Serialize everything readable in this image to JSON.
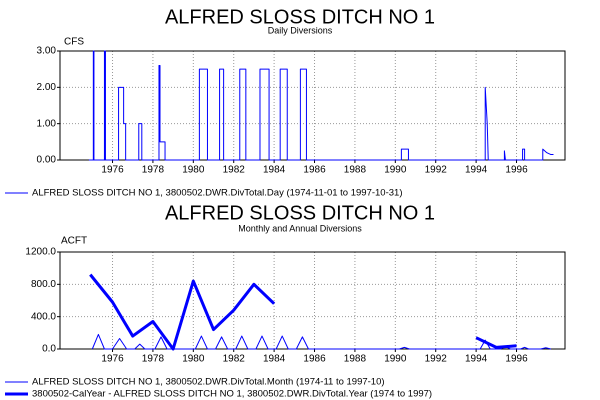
{
  "chart_data": [
    {
      "type": "line",
      "title": "ALFRED SLOSS DITCH NO 1",
      "subtitle": "Daily Diversions",
      "y_label": "CFS",
      "xlim": [
        1973.4,
        1998.4
      ],
      "xticks": [
        1976,
        1978,
        1980,
        1982,
        1984,
        1986,
        1988,
        1990,
        1992,
        1994,
        1996
      ],
      "ylim": [
        0,
        3
      ],
      "yticks": [
        {
          "value": 0,
          "label": "0.00"
        },
        {
          "value": 1,
          "label": "1.00"
        },
        {
          "value": 2,
          "label": "2.00"
        },
        {
          "value": 3,
          "label": "3.00"
        }
      ],
      "grid": true,
      "series": [
        {
          "name": "ALFRED SLOSS DITCH NO 1, 3800502.DWR.DivTotal.Day (1974-11-01 to 1997-10-31)",
          "color": "#0000ff",
          "line_width": 1,
          "x": [
            1974.83,
            1975.05,
            1975.05,
            1975.08,
            1975.08,
            1975.6,
            1975.6,
            1975.65,
            1975.65,
            1976.3,
            1976.3,
            1976.55,
            1976.55,
            1976.65,
            1976.65,
            1977.3,
            1977.3,
            1977.45,
            1977.45,
            1978.3,
            1978.3,
            1978.35,
            1978.35,
            1978.6,
            1978.6,
            1980.3,
            1980.3,
            1980.7,
            1980.7,
            1981.3,
            1981.3,
            1981.5,
            1981.5,
            1982.3,
            1982.3,
            1982.6,
            1982.6,
            1983.3,
            1983.3,
            1983.75,
            1983.75,
            1984.3,
            1984.3,
            1984.65,
            1984.65,
            1985.3,
            1985.3,
            1985.6,
            1985.6,
            1990.3,
            1990.3,
            1990.65,
            1990.65,
            1994.45,
            1994.45,
            1994.55,
            1994.6,
            1995.4,
            1995.4,
            1995.45,
            1996.3,
            1996.3,
            1996.4,
            1996.4,
            1997.3,
            1997.3,
            1997.5,
            1997.7,
            1997.83
          ],
          "values": [
            0,
            0,
            3,
            3,
            0,
            0,
            3,
            3,
            0,
            0,
            2,
            2,
            1,
            1,
            0,
            0,
            1,
            1,
            0,
            0,
            2.6,
            2.6,
            0.5,
            0.5,
            0,
            0,
            2.5,
            2.5,
            0,
            0,
            2.5,
            2.5,
            0,
            0,
            2.5,
            2.5,
            0,
            0,
            2.5,
            2.5,
            0,
            0,
            2.5,
            2.5,
            0,
            0,
            2.5,
            2.5,
            0,
            0,
            0.3,
            0.3,
            0,
            0,
            2,
            1,
            0,
            0,
            0.25,
            0,
            0,
            0.3,
            0.3,
            0,
            0,
            0.3,
            0.2,
            0.15,
            0.15
          ]
        }
      ]
    },
    {
      "type": "line",
      "title": "ALFRED SLOSS DITCH NO 1",
      "subtitle": "Monthly and Annual Diversions",
      "y_label": "ACFT",
      "xlim": [
        1973.4,
        1998.4
      ],
      "xticks": [
        1976,
        1978,
        1980,
        1982,
        1984,
        1986,
        1988,
        1990,
        1992,
        1994,
        1996
      ],
      "ylim": [
        0,
        1200
      ],
      "yticks": [
        {
          "value": 0,
          "label": "0.0"
        },
        {
          "value": 400,
          "label": "400.0"
        },
        {
          "value": 800,
          "label": "800.0"
        },
        {
          "value": 1200,
          "label": "1200.0"
        }
      ],
      "grid": true,
      "series": [
        {
          "name": "ALFRED SLOSS DITCH NO 1, 3800502.DWR.DivTotal.Month (1974-11 to 1997-10)",
          "color": "#0000ff",
          "line_width": 1,
          "x": [
            1975.0,
            1975.3,
            1975.6,
            1976.0,
            1976.35,
            1976.7,
            1977.1,
            1977.35,
            1977.6,
            1978.1,
            1978.4,
            1978.7,
            1980.1,
            1980.4,
            1980.7,
            1981.1,
            1981.4,
            1981.7,
            1982.1,
            1982.4,
            1982.7,
            1983.1,
            1983.4,
            1983.7,
            1984.1,
            1984.4,
            1984.7,
            1985.1,
            1985.4,
            1985.7,
            1990.2,
            1990.45,
            1990.7,
            1994.2,
            1994.45,
            1994.7,
            1995.2,
            1995.45,
            1995.7,
            1996.2,
            1996.4,
            1996.6,
            1997.2,
            1997.45,
            1997.7
          ],
          "values": [
            0,
            180,
            0,
            0,
            130,
            0,
            0,
            60,
            0,
            0,
            150,
            0,
            0,
            160,
            0,
            0,
            150,
            0,
            0,
            160,
            0,
            0,
            160,
            0,
            0,
            160,
            0,
            0,
            150,
            0,
            0,
            20,
            0,
            0,
            110,
            0,
            0,
            30,
            0,
            0,
            20,
            0,
            0,
            15,
            0
          ]
        },
        {
          "name": "3800502-CalYear - ALFRED SLOSS DITCH NO 1, 3800502.DWR.DivTotal.Year (1974 to 1997)",
          "color": "#0000ff",
          "line_width": 3,
          "x": [
            1974.9,
            1976,
            1977,
            1978,
            1979,
            1980,
            1981,
            1982,
            1983,
            1984,
            1989,
            1994,
            1995,
            1996
          ],
          "values": [
            920,
            580,
            160,
            340,
            0,
            840,
            240,
            480,
            800,
            560,
            null,
            140,
            20,
            40
          ]
        }
      ]
    }
  ]
}
